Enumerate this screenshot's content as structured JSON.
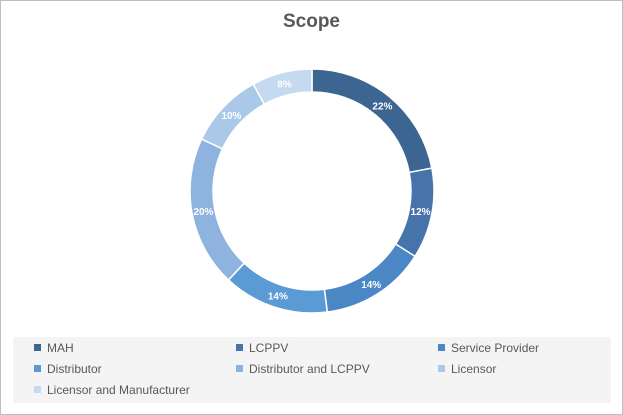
{
  "chart_data": {
    "type": "pie",
    "variant": "donut",
    "title": "Scope",
    "categories": [
      "MAH",
      "LCPPV",
      "Service Provider",
      "Distributor",
      "Distributor and LCPPV",
      "Licensor",
      "Licensor and Manufacturer"
    ],
    "values": [
      22,
      12,
      14,
      14,
      20,
      10,
      8
    ],
    "value_labels": [
      "22%",
      "12%",
      "14%",
      "14%",
      "20%",
      "10%",
      "8%"
    ],
    "unit": "%",
    "colors": [
      "#3d6591",
      "#4674aa",
      "#4b87c4",
      "#5b9bd5",
      "#8eb3df",
      "#aac9e8",
      "#c5daf0"
    ],
    "label_colors": [
      "#ffffff",
      "#ffffff",
      "#ffffff",
      "#ffffff",
      "#ffffff",
      "#ffffff",
      "#ffffff"
    ],
    "legend_position": "bottom"
  }
}
